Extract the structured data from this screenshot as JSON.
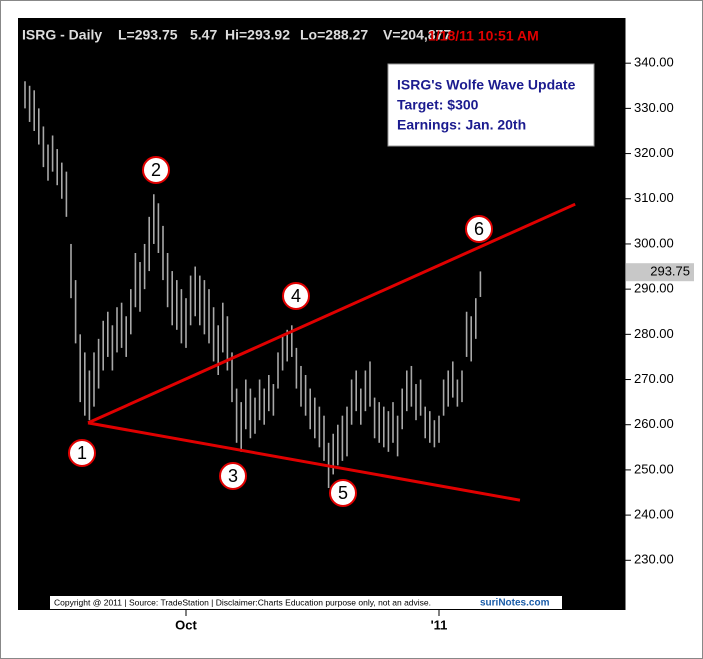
{
  "chart_data": {
    "type": "ohlc",
    "title": "ISRG - Daily",
    "stats": [
      "L=293.75",
      "5.47",
      "Hi=293.92",
      "Lo=288.27",
      "V=204,877"
    ],
    "timestamp": "1/18/11 10:51 AM",
    "annotation": [
      "ISRG's Wolfe Wave Update",
      "Target: $300",
      "Earnings: Jan. 20th"
    ],
    "wave_labels": [
      "1",
      "2",
      "3",
      "4",
      "5",
      "6"
    ],
    "last_price": 293.75,
    "footer": "Copyright @ 2011 | Source: TradeStation | Disclaimer:Charts Education purpose only, not an advise.",
    "logo": "suriNotes.com",
    "color": "#a8a8a8",
    "categories": [
      null,
      null,
      null,
      null,
      null,
      null,
      null,
      null,
      null,
      null,
      null,
      null,
      null,
      null,
      null,
      null,
      null,
      null,
      null,
      null,
      null,
      null,
      null,
      null,
      null,
      null,
      null,
      null,
      null,
      null,
      null,
      null,
      null,
      null,
      null,
      "Oct",
      null,
      null,
      null,
      null,
      null,
      null,
      null,
      null,
      null,
      null,
      null,
      null,
      null,
      null,
      null,
      null,
      null,
      null,
      null,
      null,
      null,
      null,
      null,
      null,
      null,
      null,
      null,
      null,
      null,
      null,
      null,
      null,
      null,
      null,
      null,
      null,
      null,
      null,
      null,
      null,
      null,
      null,
      null,
      null,
      null,
      null,
      null,
      null,
      null,
      null,
      null,
      null,
      null,
      null,
      "'11",
      null,
      null,
      null,
      null,
      null,
      null,
      null,
      null,
      null
    ],
    "high": [
      336,
      335,
      334,
      330,
      326,
      322,
      324,
      321,
      318,
      316,
      300,
      292,
      280,
      276,
      272,
      276,
      279,
      283,
      285,
      282,
      286,
      287,
      284,
      290,
      298,
      296,
      300,
      306,
      311,
      309,
      304,
      298,
      294,
      292,
      290,
      288,
      293,
      295,
      293,
      292,
      290,
      286,
      282,
      287,
      284,
      276,
      268,
      265,
      270,
      268,
      266,
      270,
      268,
      271,
      269,
      276,
      280,
      281,
      282,
      277,
      273,
      271,
      268,
      266,
      264,
      262,
      256,
      258,
      260,
      262,
      264,
      270,
      272,
      268,
      272,
      274,
      266,
      265,
      264,
      263,
      265,
      262,
      268,
      272,
      273,
      269,
      270,
      264,
      263,
      261,
      262,
      270,
      272,
      274,
      270,
      272,
      285,
      284,
      288,
      293.92
    ],
    "low": [
      330,
      327,
      325,
      322,
      317,
      314,
      316,
      313,
      310,
      306,
      288,
      278,
      265,
      262,
      261,
      264,
      268,
      272,
      275,
      272,
      276,
      277,
      275,
      280,
      286,
      285,
      290,
      294,
      300,
      298,
      292,
      286,
      282,
      281,
      278,
      277,
      282,
      284,
      282,
      280,
      278,
      274,
      271,
      276,
      272,
      265,
      256,
      254,
      259,
      257,
      258,
      261,
      260,
      263,
      262,
      268,
      272,
      274,
      275,
      268,
      264,
      262,
      259,
      257,
      255,
      252,
      246,
      249,
      251,
      252,
      253,
      260,
      263,
      260,
      263,
      264,
      257,
      256,
      255,
      254,
      256,
      253,
      259,
      263,
      264,
      261,
      262,
      257,
      256,
      255,
      256,
      262,
      264,
      266,
      264,
      265,
      275,
      274,
      279,
      288.27
    ],
    "trendlines": [
      {
        "color": "#e00000",
        "points": [
          [
            13.7,
            260.4
          ],
          [
            119.6,
            308.8
          ]
        ]
      },
      {
        "color": "#e00000",
        "points": [
          [
            13.7,
            260.4
          ],
          [
            107.6,
            243.3
          ]
        ]
      }
    ],
    "ylim": [
      219,
      350
    ],
    "yticks": [
      {
        "value": 230,
        "label": "230.00"
      },
      {
        "value": 240,
        "label": "240.00"
      },
      {
        "value": 250,
        "label": "250.00"
      },
      {
        "value": 260,
        "label": "260.00"
      },
      {
        "value": 270,
        "label": "270.00"
      },
      {
        "value": 280,
        "label": "280.00"
      },
      {
        "value": 290,
        "label": "290.00"
      },
      {
        "value": 300,
        "label": "300.00"
      },
      {
        "value": 310,
        "label": "310.00"
      },
      {
        "value": 320,
        "label": "320.00"
      },
      {
        "value": 330,
        "label": "330.00"
      },
      {
        "value": 340,
        "label": "340.00"
      }
    ]
  }
}
